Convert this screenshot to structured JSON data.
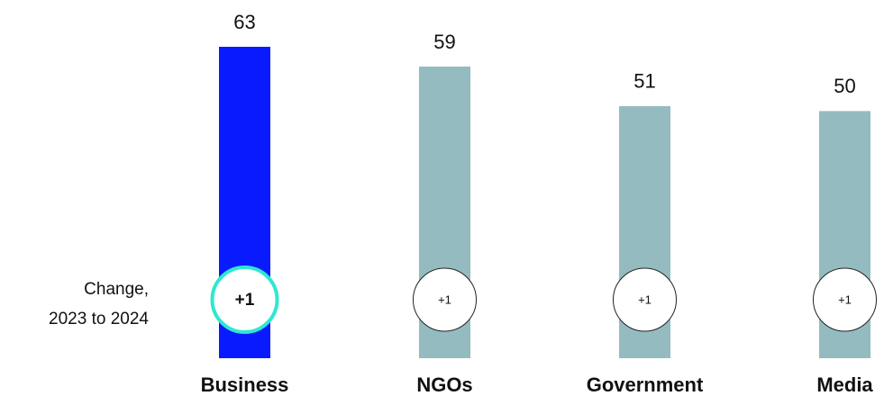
{
  "chart_data": {
    "type": "bar",
    "categories": [
      "Business",
      "NGOs",
      "Government",
      "Media"
    ],
    "values": [
      63,
      59,
      51,
      50
    ],
    "colors": [
      "#0a1aff",
      "#94bbc0",
      "#94bbc0",
      "#94bbc0"
    ],
    "changes": [
      1,
      1,
      1,
      1
    ],
    "change_labels": [
      "+1",
      "+1",
      "+1",
      "+1"
    ],
    "highlight": "Business",
    "highlight_color": "#2ee8d0",
    "annotation": [
      "Change,",
      "2023 to 2024"
    ]
  }
}
